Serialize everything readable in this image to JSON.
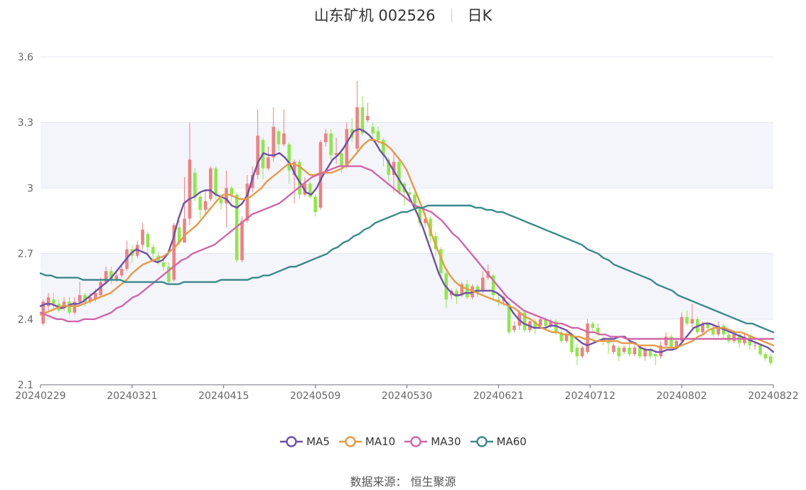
{
  "header": {
    "stock_name": "山东矿机 002526",
    "period": "日K"
  },
  "source": {
    "label": "数据来源：",
    "value": "恒生聚源"
  },
  "colors": {
    "up": "#f08080",
    "down": "#8ee84a",
    "ma5": "#6f4fa8",
    "ma10": "#e69a45",
    "ma30": "#d166a8",
    "ma60": "#3b8a8a",
    "band": "#f4f5fb",
    "grid": "#e1e4f0"
  },
  "chart_data": {
    "type": "candlestick",
    "ylim": [
      2.1,
      3.6
    ],
    "yticks": [
      "2.1",
      "2.4",
      "2.7",
      "3",
      "3.3",
      "3.6"
    ],
    "xticks": [
      "20240229",
      "20240321",
      "20240415",
      "20240509",
      "20240530",
      "20240621",
      "20240712",
      "20240802",
      "20240822"
    ],
    "legend": [
      "MA5",
      "MA10",
      "MA30",
      "MA60"
    ],
    "candles": [
      [
        2.38,
        2.48,
        2.49,
        2.37
      ],
      [
        2.46,
        2.5,
        2.52,
        2.44
      ],
      [
        2.49,
        2.47,
        2.52,
        2.45
      ],
      [
        2.47,
        2.44,
        2.49,
        2.43
      ],
      [
        2.45,
        2.48,
        2.5,
        2.44
      ],
      [
        2.48,
        2.43,
        2.5,
        2.42
      ],
      [
        2.43,
        2.48,
        2.5,
        2.42
      ],
      [
        2.48,
        2.51,
        2.57,
        2.47
      ],
      [
        2.51,
        2.48,
        2.52,
        2.46
      ],
      [
        2.48,
        2.5,
        2.52,
        2.47
      ],
      [
        2.49,
        2.52,
        2.54,
        2.48
      ],
      [
        2.51,
        2.57,
        2.59,
        2.5
      ],
      [
        2.57,
        2.62,
        2.64,
        2.56
      ],
      [
        2.62,
        2.58,
        2.64,
        2.56
      ],
      [
        2.58,
        2.6,
        2.62,
        2.57
      ],
      [
        2.6,
        2.63,
        2.65,
        2.59
      ],
      [
        2.63,
        2.72,
        2.76,
        2.62
      ],
      [
        2.72,
        2.69,
        2.74,
        2.66
      ],
      [
        2.69,
        2.74,
        2.76,
        2.68
      ],
      [
        2.74,
        2.81,
        2.84,
        2.72
      ],
      [
        2.79,
        2.73,
        2.8,
        2.7
      ],
      [
        2.73,
        2.7,
        2.74,
        2.66
      ],
      [
        2.69,
        2.66,
        2.71,
        2.65
      ],
      [
        2.66,
        2.64,
        2.68,
        2.62
      ],
      [
        2.64,
        2.57,
        2.66,
        2.56
      ],
      [
        2.58,
        2.83,
        2.84,
        2.57
      ],
      [
        2.82,
        2.75,
        2.85,
        2.74
      ],
      [
        2.75,
        2.86,
        3.05,
        2.75
      ],
      [
        2.86,
        3.13,
        3.3,
        2.83
      ],
      [
        3.07,
        2.96,
        3.09,
        2.94
      ],
      [
        2.96,
        2.9,
        2.98,
        2.86
      ],
      [
        2.9,
        2.94,
        2.99,
        2.88
      ],
      [
        2.95,
        3.09,
        3.1,
        2.94
      ],
      [
        3.09,
        2.97,
        3.1,
        2.95
      ],
      [
        2.95,
        2.93,
        2.97,
        2.9
      ],
      [
        2.93,
        3.0,
        3.08,
        2.82
      ],
      [
        3.0,
        2.97,
        3.01,
        2.94
      ],
      [
        2.97,
        2.67,
        2.98,
        2.66
      ],
      [
        2.67,
        2.85,
        2.87,
        2.66
      ],
      [
        2.85,
        3.02,
        3.06,
        2.84
      ],
      [
        3.0,
        3.06,
        3.1,
        2.98
      ],
      [
        3.06,
        3.24,
        3.36,
        3.04
      ],
      [
        3.22,
        3.09,
        3.23,
        3.04
      ],
      [
        3.09,
        3.14,
        3.19,
        3.08
      ],
      [
        3.14,
        3.28,
        3.37,
        3.12
      ],
      [
        3.26,
        3.2,
        3.27,
        3.17
      ],
      [
        3.2,
        3.25,
        3.36,
        3.19
      ],
      [
        3.2,
        3.08,
        3.21,
        3.02
      ],
      [
        3.06,
        3.12,
        3.13,
        2.93
      ],
      [
        3.12,
        2.97,
        3.13,
        2.95
      ],
      [
        2.97,
        3.02,
        3.05,
        2.96
      ],
      [
        3.02,
        2.96,
        3.03,
        2.95
      ],
      [
        2.96,
        2.89,
        2.97,
        2.87
      ],
      [
        2.91,
        3.21,
        3.22,
        2.9
      ],
      [
        3.21,
        3.25,
        3.27,
        3.19
      ],
      [
        3.25,
        3.15,
        3.27,
        3.13
      ],
      [
        3.15,
        3.16,
        3.23,
        3.11
      ],
      [
        3.16,
        3.1,
        3.18,
        3.07
      ],
      [
        3.1,
        3.27,
        3.3,
        3.09
      ],
      [
        3.27,
        3.23,
        3.32,
        3.21
      ],
      [
        3.18,
        3.37,
        3.49,
        3.16
      ],
      [
        3.37,
        3.25,
        3.42,
        3.24
      ],
      [
        3.31,
        3.33,
        3.39,
        3.3
      ],
      [
        3.28,
        3.25,
        3.3,
        3.22
      ],
      [
        3.26,
        3.22,
        3.28,
        3.2
      ],
      [
        3.22,
        3.15,
        3.23,
        3.1
      ],
      [
        3.13,
        3.06,
        3.14,
        3.03
      ],
      [
        3.06,
        3.12,
        3.16,
        2.98
      ],
      [
        3.12,
        2.98,
        3.13,
        2.97
      ],
      [
        3.02,
        2.98,
        3.03,
        2.92
      ],
      [
        2.98,
        2.97,
        3.0,
        2.94
      ],
      [
        2.97,
        2.91,
        2.98,
        2.9
      ],
      [
        2.91,
        2.84,
        2.91,
        2.82
      ],
      [
        2.84,
        2.86,
        2.89,
        2.82
      ],
      [
        2.86,
        2.78,
        2.87,
        2.75
      ],
      [
        2.78,
        2.72,
        2.8,
        2.69
      ],
      [
        2.72,
        2.61,
        2.73,
        2.59
      ],
      [
        2.61,
        2.49,
        2.62,
        2.45
      ],
      [
        2.51,
        2.53,
        2.54,
        2.49
      ],
      [
        2.53,
        2.5,
        2.54,
        2.47
      ],
      [
        2.51,
        2.56,
        2.57,
        2.5
      ],
      [
        2.56,
        2.5,
        2.58,
        2.49
      ],
      [
        2.5,
        2.55,
        2.56,
        2.49
      ],
      [
        2.55,
        2.52,
        2.56,
        2.5
      ],
      [
        2.53,
        2.59,
        2.62,
        2.52
      ],
      [
        2.59,
        2.62,
        2.65,
        2.58
      ],
      [
        2.6,
        2.51,
        2.61,
        2.49
      ],
      [
        2.49,
        2.48,
        2.52,
        2.46
      ],
      [
        2.48,
        2.5,
        2.51,
        2.46
      ],
      [
        2.47,
        2.34,
        2.48,
        2.33
      ],
      [
        2.35,
        2.37,
        2.39,
        2.34
      ],
      [
        2.37,
        2.43,
        2.44,
        2.35
      ],
      [
        2.43,
        2.35,
        2.44,
        2.34
      ],
      [
        2.35,
        2.39,
        2.4,
        2.34
      ],
      [
        2.39,
        2.36,
        2.4,
        2.33
      ],
      [
        2.37,
        2.4,
        2.41,
        2.36
      ],
      [
        2.4,
        2.37,
        2.41,
        2.36
      ],
      [
        2.37,
        2.39,
        2.4,
        2.36
      ],
      [
        2.39,
        2.34,
        2.4,
        2.33
      ],
      [
        2.34,
        2.3,
        2.35,
        2.29
      ],
      [
        2.3,
        2.33,
        2.34,
        2.29
      ],
      [
        2.33,
        2.25,
        2.34,
        2.24
      ],
      [
        2.27,
        2.23,
        2.29,
        2.19
      ],
      [
        2.23,
        2.27,
        2.28,
        2.22
      ],
      [
        2.25,
        2.38,
        2.4,
        2.24
      ],
      [
        2.38,
        2.36,
        2.39,
        2.34
      ],
      [
        2.36,
        2.33,
        2.38,
        2.32
      ],
      [
        2.31,
        2.3,
        2.32,
        2.28
      ],
      [
        2.3,
        2.29,
        2.31,
        2.24
      ],
      [
        2.25,
        2.28,
        2.29,
        2.24
      ],
      [
        2.27,
        2.23,
        2.28,
        2.21
      ],
      [
        2.25,
        2.27,
        2.28,
        2.24
      ],
      [
        2.27,
        2.24,
        2.3,
        2.23
      ],
      [
        2.24,
        2.27,
        2.28,
        2.23
      ],
      [
        2.27,
        2.23,
        2.28,
        2.22
      ],
      [
        2.23,
        2.26,
        2.27,
        2.21
      ],
      [
        2.26,
        2.23,
        2.27,
        2.22
      ],
      [
        2.24,
        2.23,
        2.25,
        2.19
      ],
      [
        2.23,
        2.28,
        2.3,
        2.22
      ],
      [
        2.28,
        2.32,
        2.34,
        2.27
      ],
      [
        2.32,
        2.27,
        2.33,
        2.26
      ],
      [
        2.27,
        2.3,
        2.31,
        2.26
      ],
      [
        2.3,
        2.41,
        2.43,
        2.29
      ],
      [
        2.41,
        2.38,
        2.44,
        2.37
      ],
      [
        2.38,
        2.4,
        2.47,
        2.36
      ],
      [
        2.4,
        2.34,
        2.41,
        2.33
      ],
      [
        2.34,
        2.38,
        2.39,
        2.33
      ],
      [
        2.38,
        2.36,
        2.39,
        2.35
      ],
      [
        2.36,
        2.33,
        2.38,
        2.32
      ],
      [
        2.33,
        2.37,
        2.39,
        2.32
      ],
      [
        2.37,
        2.33,
        2.38,
        2.31
      ],
      [
        2.33,
        2.3,
        2.34,
        2.29
      ],
      [
        2.3,
        2.33,
        2.34,
        2.29
      ],
      [
        2.33,
        2.29,
        2.33,
        2.27
      ],
      [
        2.29,
        2.32,
        2.34,
        2.28
      ],
      [
        2.32,
        2.28,
        2.33,
        2.26
      ],
      [
        2.28,
        2.28,
        2.3,
        2.26
      ],
      [
        2.28,
        2.24,
        2.29,
        2.23
      ],
      [
        2.24,
        2.22,
        2.25,
        2.21
      ],
      [
        2.23,
        2.2,
        2.24,
        2.19
      ]
    ],
    "series": [
      {
        "name": "MA5",
        "values": [
          2.46,
          2.47,
          2.47,
          2.46,
          2.45,
          2.46,
          2.47,
          2.47,
          2.48,
          2.5,
          2.52,
          2.54,
          2.56,
          2.58,
          2.61,
          2.64,
          2.67,
          2.7,
          2.72,
          2.71,
          2.7,
          2.67,
          2.66,
          2.67,
          2.7,
          2.77,
          2.86,
          2.93,
          2.95,
          2.96,
          2.98,
          2.99,
          2.99,
          2.97,
          2.96,
          2.95,
          2.92,
          2.91,
          2.93,
          2.97,
          3.05,
          3.12,
          3.16,
          3.15,
          3.15,
          3.16,
          3.14,
          3.11,
          3.06,
          3.02,
          2.98,
          2.97,
          3.0,
          3.05,
          3.09,
          3.13,
          3.15,
          3.18,
          3.22,
          3.26,
          3.27,
          3.26,
          3.24,
          3.21,
          3.17,
          3.14,
          3.1,
          3.06,
          3.02,
          2.98,
          2.93,
          2.88,
          2.82,
          2.75,
          2.68,
          2.61,
          2.56,
          2.53,
          2.51,
          2.51,
          2.52,
          2.52,
          2.53,
          2.53,
          2.53,
          2.53,
          2.52,
          2.5,
          2.47,
          2.43,
          2.4,
          2.38,
          2.37,
          2.36,
          2.36,
          2.36,
          2.37,
          2.37,
          2.36,
          2.35,
          2.33,
          2.31,
          2.29,
          2.28,
          2.29,
          2.3,
          2.31,
          2.31,
          2.31,
          2.32,
          2.32,
          2.3,
          2.29,
          2.27,
          2.26,
          2.26,
          2.25,
          2.25,
          2.26,
          2.26,
          2.27,
          2.3,
          2.33,
          2.36,
          2.37,
          2.38,
          2.38,
          2.37,
          2.36,
          2.35,
          2.34,
          2.33,
          2.32,
          2.31,
          2.3,
          2.29,
          2.28,
          2.27,
          2.25
        ]
      },
      {
        "name": "MA10",
        "values": [
          2.42,
          2.43,
          2.44,
          2.45,
          2.46,
          2.46,
          2.46,
          2.46,
          2.47,
          2.48,
          2.49,
          2.5,
          2.51,
          2.52,
          2.54,
          2.56,
          2.58,
          2.61,
          2.63,
          2.65,
          2.66,
          2.67,
          2.68,
          2.69,
          2.71,
          2.73,
          2.76,
          2.79,
          2.81,
          2.83,
          2.86,
          2.89,
          2.92,
          2.95,
          2.97,
          2.97,
          2.96,
          2.95,
          2.95,
          2.96,
          2.98,
          3.0,
          3.03,
          3.05,
          3.07,
          3.09,
          3.11,
          3.11,
          3.1,
          3.08,
          3.06,
          3.06,
          3.07,
          3.07,
          3.07,
          3.08,
          3.09,
          3.11,
          3.14,
          3.17,
          3.2,
          3.22,
          3.22,
          3.21,
          3.2,
          3.18,
          3.15,
          3.12,
          3.08,
          3.02,
          2.96,
          2.9,
          2.83,
          2.76,
          2.7,
          2.64,
          2.6,
          2.57,
          2.55,
          2.54,
          2.53,
          2.52,
          2.51,
          2.5,
          2.49,
          2.48,
          2.47,
          2.46,
          2.45,
          2.43,
          2.41,
          2.4,
          2.38,
          2.36,
          2.35,
          2.34,
          2.34,
          2.33,
          2.33,
          2.32,
          2.32,
          2.31,
          2.31,
          2.3,
          2.3,
          2.3,
          2.3,
          2.3,
          2.29,
          2.29,
          2.29,
          2.28,
          2.28,
          2.28,
          2.28,
          2.27,
          2.27,
          2.27,
          2.27,
          2.28,
          2.29,
          2.3,
          2.32,
          2.33,
          2.35,
          2.36,
          2.36,
          2.36,
          2.35,
          2.34,
          2.34,
          2.33,
          2.32,
          2.31,
          2.3,
          2.29,
          2.28
        ]
      },
      {
        "name": "MA30",
        "values": [
          2.43,
          2.42,
          2.41,
          2.4,
          2.4,
          2.39,
          2.39,
          2.39,
          2.4,
          2.4,
          2.4,
          2.41,
          2.42,
          2.43,
          2.45,
          2.46,
          2.48,
          2.5,
          2.51,
          2.53,
          2.55,
          2.57,
          2.59,
          2.61,
          2.63,
          2.65,
          2.67,
          2.68,
          2.7,
          2.71,
          2.72,
          2.73,
          2.74,
          2.76,
          2.78,
          2.8,
          2.82,
          2.84,
          2.86,
          2.88,
          2.89,
          2.9,
          2.91,
          2.92,
          2.93,
          2.95,
          2.97,
          2.99,
          3.01,
          3.03,
          3.05,
          3.06,
          3.07,
          3.08,
          3.09,
          3.1,
          3.1,
          3.1,
          3.1,
          3.1,
          3.09,
          3.08,
          3.06,
          3.04,
          3.02,
          3.0,
          2.98,
          2.96,
          2.94,
          2.92,
          2.91,
          2.9,
          2.89,
          2.87,
          2.85,
          2.82,
          2.79,
          2.77,
          2.74,
          2.71,
          2.68,
          2.65,
          2.62,
          2.59,
          2.56,
          2.53,
          2.5,
          2.48,
          2.46,
          2.44,
          2.43,
          2.42,
          2.41,
          2.4,
          2.39,
          2.38,
          2.38,
          2.37,
          2.36,
          2.36,
          2.35,
          2.34,
          2.34,
          2.33,
          2.33,
          2.32,
          2.32,
          2.32,
          2.31,
          2.31,
          2.31,
          2.31,
          2.31,
          2.31,
          2.31,
          2.31,
          2.31,
          2.31,
          2.31,
          2.31,
          2.31,
          2.31,
          2.31,
          2.31,
          2.31,
          2.31,
          2.31,
          2.31,
          2.31,
          2.31,
          2.31,
          2.31,
          2.31,
          2.31,
          2.31,
          2.31
        ]
      },
      {
        "name": "MA60",
        "values": [
          2.61,
          2.6,
          2.6,
          2.59,
          2.59,
          2.59,
          2.59,
          2.59,
          2.58,
          2.58,
          2.58,
          2.58,
          2.58,
          2.58,
          2.58,
          2.58,
          2.57,
          2.57,
          2.57,
          2.57,
          2.57,
          2.57,
          2.57,
          2.57,
          2.56,
          2.56,
          2.56,
          2.57,
          2.57,
          2.57,
          2.57,
          2.57,
          2.57,
          2.57,
          2.58,
          2.58,
          2.58,
          2.58,
          2.58,
          2.58,
          2.59,
          2.59,
          2.6,
          2.6,
          2.61,
          2.62,
          2.63,
          2.64,
          2.64,
          2.65,
          2.66,
          2.67,
          2.68,
          2.69,
          2.7,
          2.72,
          2.73,
          2.75,
          2.76,
          2.78,
          2.79,
          2.81,
          2.82,
          2.84,
          2.85,
          2.86,
          2.87,
          2.88,
          2.89,
          2.89,
          2.9,
          2.91,
          2.91,
          2.92,
          2.92,
          2.92,
          2.92,
          2.92,
          2.92,
          2.92,
          2.92,
          2.92,
          2.91,
          2.91,
          2.9,
          2.9,
          2.89,
          2.89,
          2.88,
          2.87,
          2.86,
          2.85,
          2.84,
          2.83,
          2.82,
          2.81,
          2.8,
          2.79,
          2.78,
          2.77,
          2.76,
          2.75,
          2.74,
          2.72,
          2.71,
          2.7,
          2.68,
          2.67,
          2.65,
          2.64,
          2.63,
          2.62,
          2.61,
          2.6,
          2.59,
          2.58,
          2.56,
          2.55,
          2.54,
          2.53,
          2.51,
          2.5,
          2.49,
          2.48,
          2.47,
          2.46,
          2.45,
          2.44,
          2.43,
          2.42,
          2.41,
          2.4,
          2.39,
          2.38,
          2.38,
          2.37,
          2.36,
          2.35,
          2.34
        ]
      }
    ]
  }
}
